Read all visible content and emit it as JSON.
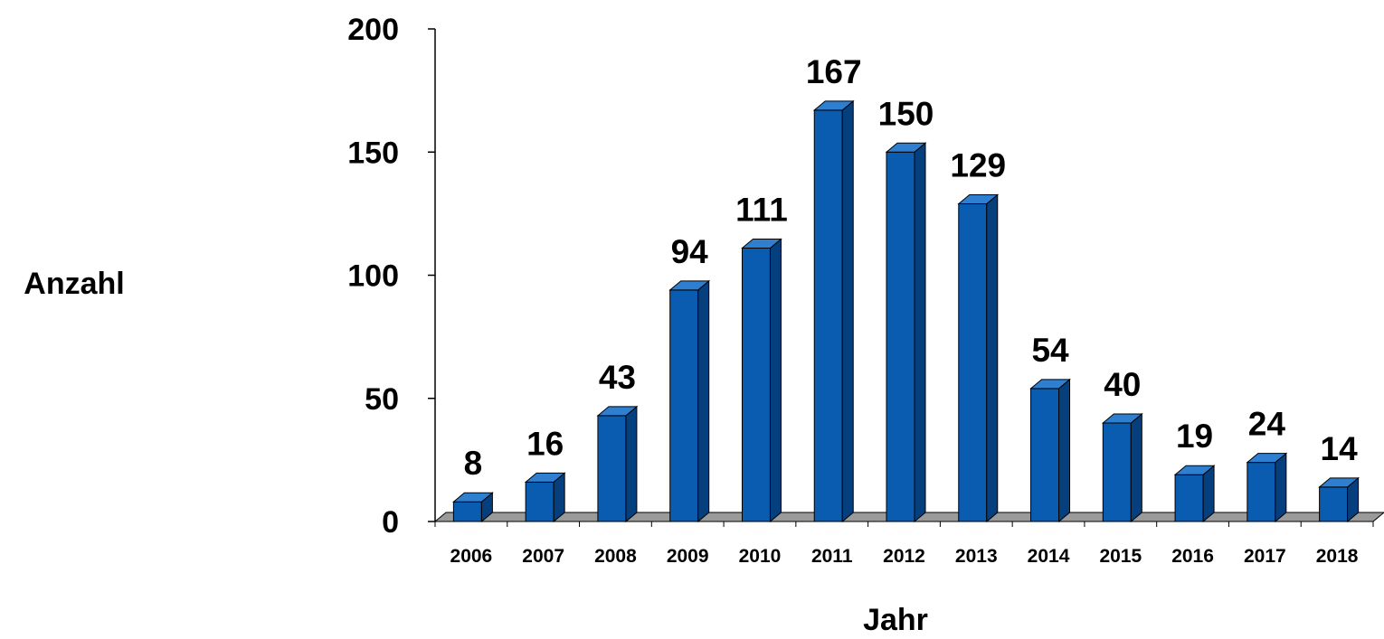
{
  "chart_data": {
    "type": "bar",
    "style": "3d-column",
    "categories": [
      "2006",
      "2007",
      "2008",
      "2009",
      "2010",
      "2011",
      "2012",
      "2013",
      "2014",
      "2015",
      "2016",
      "2017",
      "2018"
    ],
    "values": [
      8,
      16,
      43,
      94,
      111,
      167,
      150,
      129,
      54,
      40,
      19,
      24,
      14
    ],
    "xlabel": "Jahr",
    "ylabel": "Anzahl",
    "ylim": [
      0,
      200
    ],
    "yticks": [
      0,
      50,
      100,
      150,
      200
    ],
    "grid": false,
    "legend": "none",
    "colors": {
      "bar_front": "#0a5cb0",
      "bar_side": "#063f7d",
      "bar_top": "#2f7fd0",
      "floor": "#9a9a9a",
      "axis": "#000000"
    }
  }
}
